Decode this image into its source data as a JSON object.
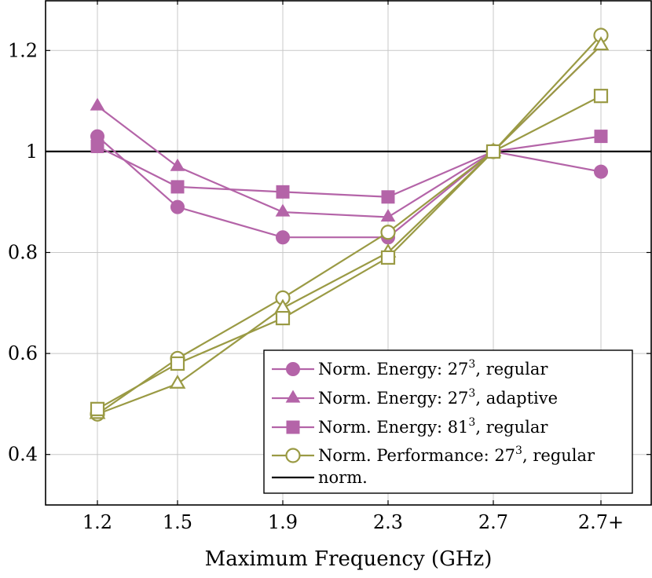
{
  "chart_data": {
    "type": "line",
    "title": "",
    "xlabel": "Maximum Frequency (GHz)",
    "ylabel": "",
    "categories": [
      "1.2",
      "1.5",
      "1.9",
      "2.3",
      "2.7",
      "2.7+"
    ],
    "ylim": [
      0.3,
      1.3
    ],
    "yticks": [
      0.4,
      0.6,
      0.8,
      1,
      1.2
    ],
    "ytick_labels": [
      "0.4",
      "0.6",
      "0.8",
      "1",
      "1.2"
    ],
    "grid": true,
    "legend_position": "bottom-right",
    "reference_line": {
      "name": "norm.",
      "value": 1,
      "color": "#000000"
    },
    "series": [
      {
        "name_prefix": "Norm. Energy: 27",
        "name_sup": "3",
        "name_suffix": ", regular",
        "color": "#b464a8",
        "marker": "filled-circle",
        "values": [
          1.03,
          0.89,
          0.83,
          0.83,
          1.0,
          0.96
        ]
      },
      {
        "name_prefix": "Norm. Energy: 27",
        "name_sup": "3",
        "name_suffix": ", adaptive",
        "color": "#b464a8",
        "marker": "filled-triangle",
        "values": [
          1.09,
          0.97,
          0.88,
          0.87,
          1.0,
          1.21
        ]
      },
      {
        "name_prefix": "Norm. Energy: 81",
        "name_sup": "3",
        "name_suffix": ", regular",
        "color": "#b464a8",
        "marker": "filled-square",
        "values": [
          1.01,
          0.93,
          0.92,
          0.91,
          1.0,
          1.03
        ]
      },
      {
        "name_prefix": "Norm. Performance: 27",
        "name_sup": "3",
        "name_suffix": ", regular",
        "color": "#9a9a44",
        "marker": "open-circle",
        "values": [
          0.48,
          0.59,
          0.71,
          0.84,
          1.0,
          1.23
        ]
      },
      {
        "name_prefix": "",
        "name_sup": "",
        "name_suffix": "",
        "color": "#9a9a44",
        "marker": "open-triangle",
        "values": [
          0.48,
          0.54,
          0.69,
          0.8,
          1.0,
          1.21
        ]
      },
      {
        "name_prefix": "",
        "name_sup": "",
        "name_suffix": "",
        "color": "#9a9a44",
        "marker": "open-square",
        "values": [
          0.49,
          0.58,
          0.67,
          0.79,
          1.0,
          1.11
        ]
      }
    ]
  }
}
